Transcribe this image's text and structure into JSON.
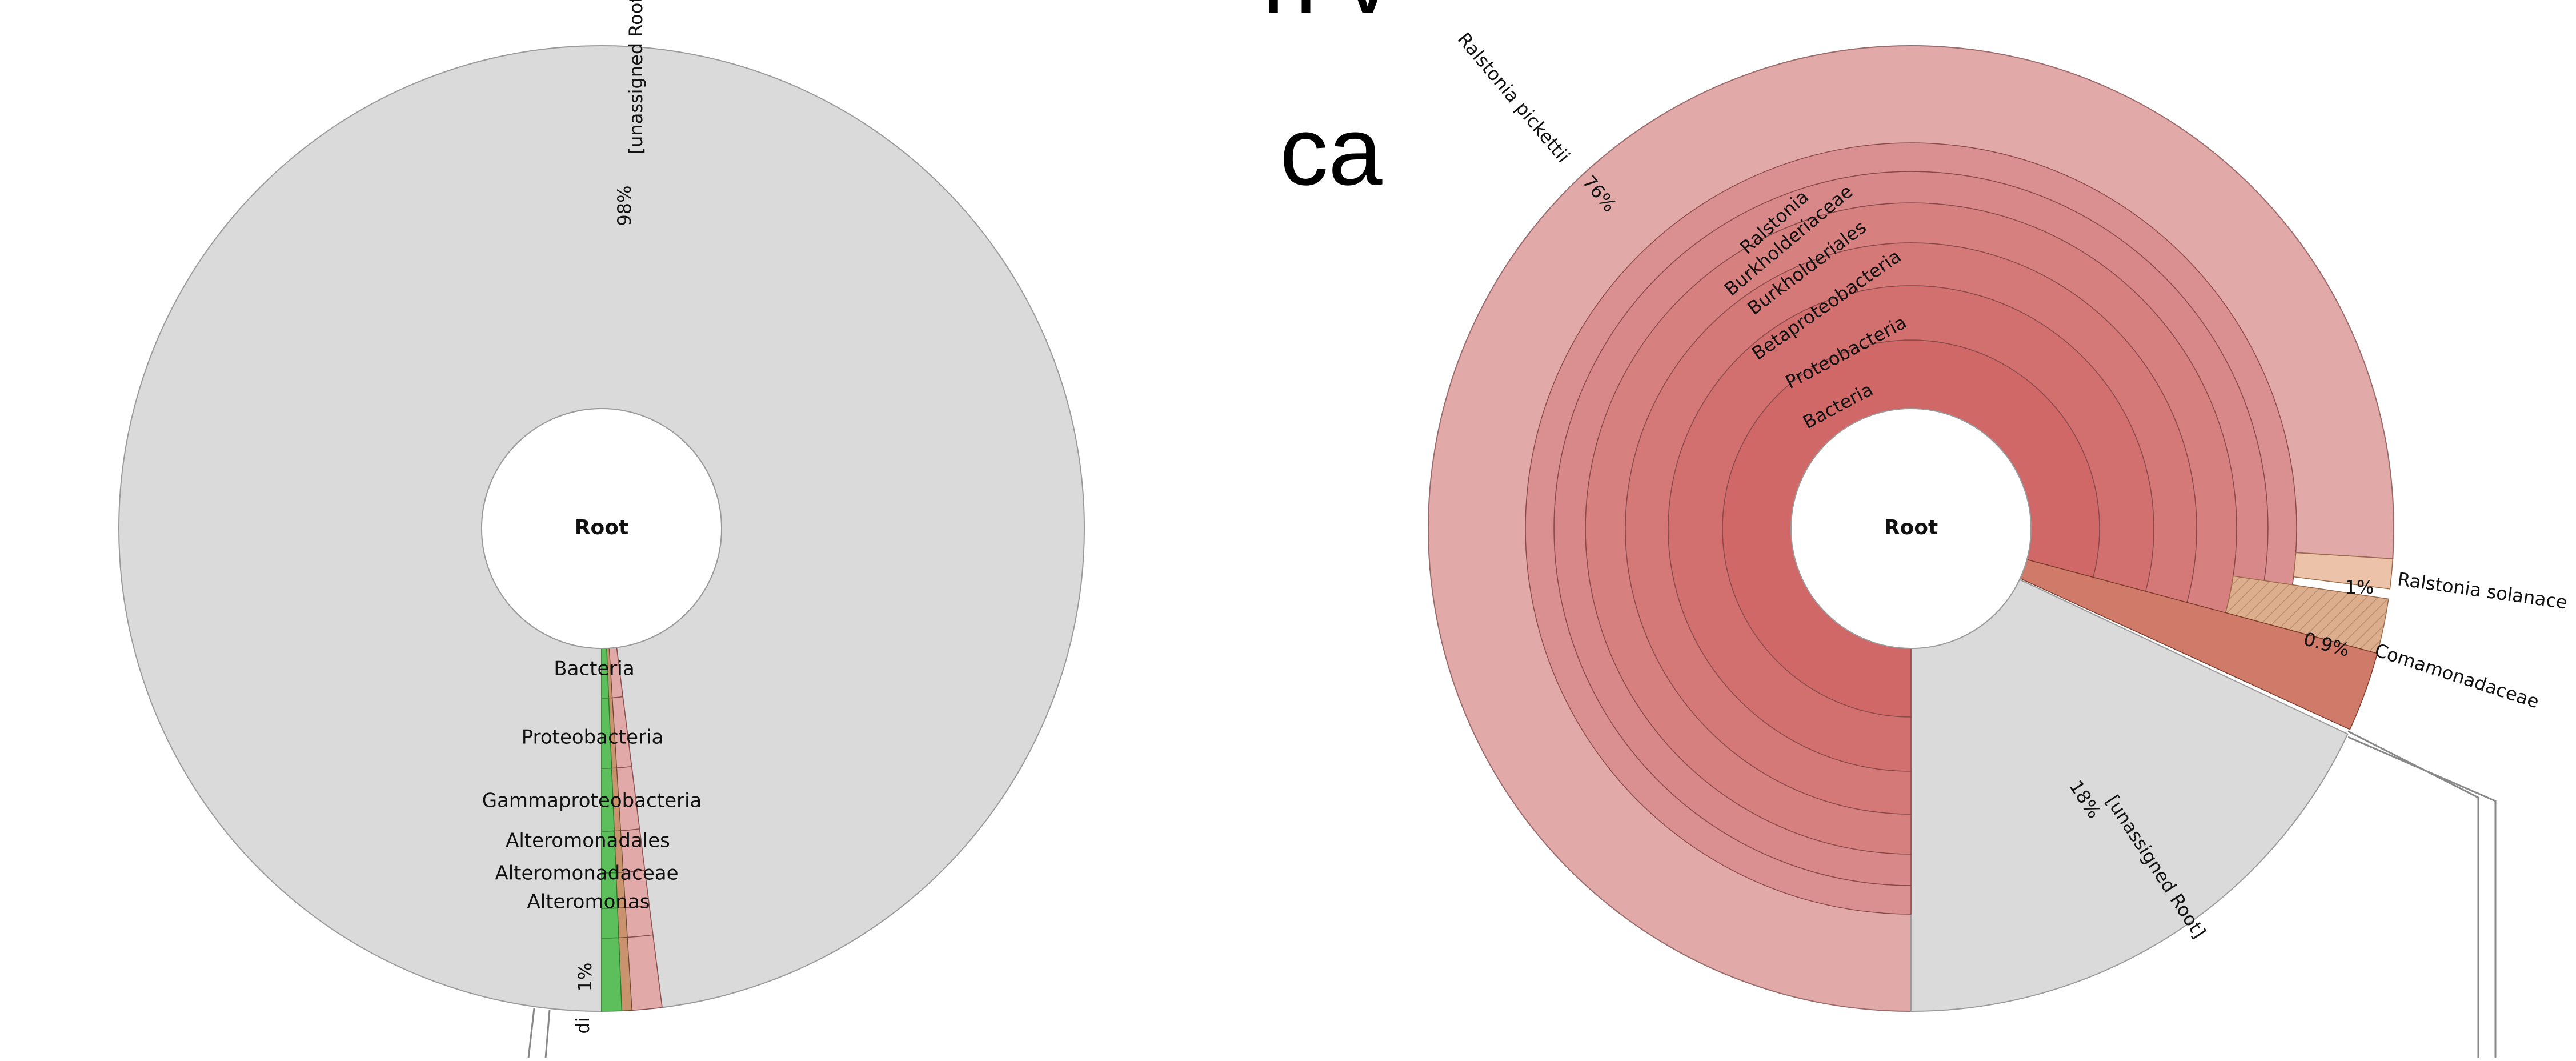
{
  "heading": {
    "line1": "n v",
    "line2": "ca"
  },
  "chart_data": [
    {
      "type": "sunburst",
      "title": "",
      "center_label": "Root",
      "rings": [
        {
          "level": 1,
          "label": "Bacteria",
          "percent": 1
        },
        {
          "level": 2,
          "label": "Proteobacteria",
          "percent": 1
        },
        {
          "level": 3,
          "label": "Gammaproteobacteria",
          "percent": 1
        },
        {
          "level": 4,
          "label": "Alteromonadales",
          "percent": 1
        },
        {
          "level": 5,
          "label": "Alteromonadaceae",
          "percent": 1
        },
        {
          "level": 6,
          "label": "Alteromonas",
          "percent": 1
        }
      ],
      "segments": [
        {
          "label": "[unassigned Root]",
          "percent": 98,
          "percent_label": "98%",
          "color": "#dadada"
        },
        {
          "label": "",
          "percent": 1,
          "percent_label": "1%",
          "color": "#e2a9a9"
        },
        {
          "label": "",
          "percent": 0.6,
          "percent_label": "",
          "color": "#5cbf5c"
        },
        {
          "label": "",
          "percent": 0.4,
          "percent_label": "",
          "color": "#c9936e"
        }
      ],
      "truncated_label": "di"
    },
    {
      "type": "sunburst",
      "title": "",
      "center_label": "Root",
      "rings": [
        {
          "level": 1,
          "label": "Bacteria"
        },
        {
          "level": 2,
          "label": "Proteobacteria"
        },
        {
          "level": 3,
          "label": "Betaproteobacteria"
        },
        {
          "level": 4,
          "label": "Burkholderiales"
        },
        {
          "level": 5,
          "label": "Burkholderiaceae"
        },
        {
          "level": 6,
          "label": "Ralstonia"
        }
      ],
      "segments": [
        {
          "label": "Ralstonia pickettii",
          "percent": 76,
          "percent_label": "76%",
          "color": "#e2a9a9"
        },
        {
          "label": "[unassigned Root]",
          "percent": 18,
          "percent_label": "18%",
          "color": "#dadada"
        },
        {
          "label": "Ralstonia solanacearum",
          "display_label": "Ralstonia solanace",
          "percent": 1,
          "percent_label": "1%",
          "color": "#ecc3a8"
        },
        {
          "label": "Comamonadaceae",
          "percent": 0.9,
          "percent_label": "0.9%",
          "color": "#dcae8e"
        },
        {
          "label": "",
          "percent": 4.1,
          "percent_label": "",
          "color": "#d07a6a"
        }
      ]
    }
  ]
}
